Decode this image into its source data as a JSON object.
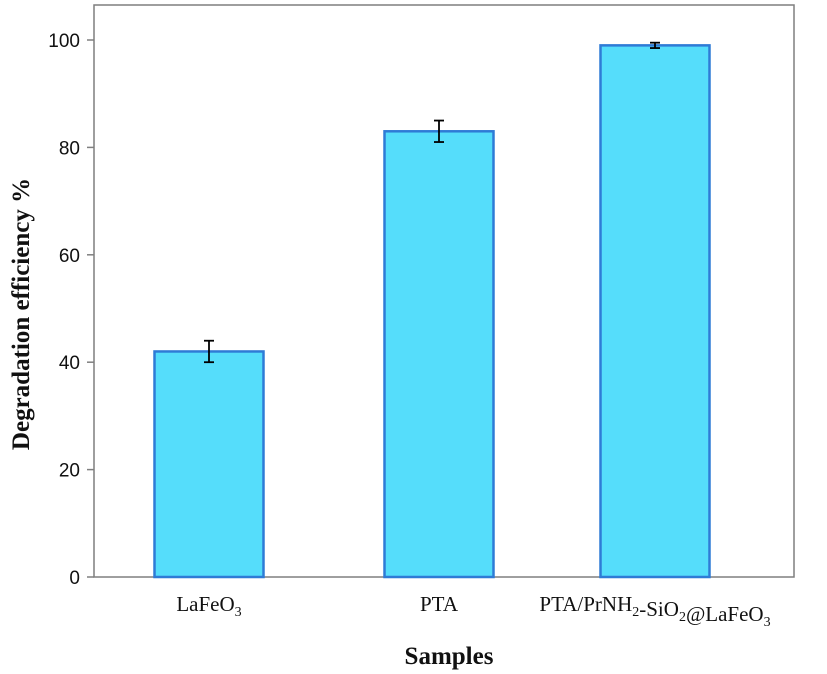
{
  "chart_data": {
    "type": "bar",
    "categories": [
      "LaFeO3",
      "PTA",
      "PTA/PrNH2-SiO2@LaFeO3"
    ],
    "category_parts": [
      [
        {
          "t": "LaFeO",
          "sub": false
        },
        {
          "t": "3",
          "sub": true
        }
      ],
      [
        {
          "t": "PTA",
          "sub": false
        }
      ],
      [
        {
          "t": "PTA/PrNH",
          "sub": false
        },
        {
          "t": "2",
          "sub": true
        },
        {
          "t": "-SiO",
          "sub": false
        },
        {
          "t": "2",
          "sub": true
        },
        {
          "t": "@LaFeO",
          "sub": false
        },
        {
          "t": "3",
          "sub": true
        }
      ]
    ],
    "values": [
      42,
      83,
      99
    ],
    "errors": [
      2,
      2,
      0.5
    ],
    "xlabel": "Samples",
    "ylabel": "Degradation efficiency %",
    "ylim": [
      0,
      100
    ],
    "yticks": [
      0,
      20,
      40,
      60,
      80,
      100
    ],
    "grid": false,
    "legend": "none",
    "colors": {
      "bar_fill": "#55DDFB",
      "bar_stroke": "#2E7BD6",
      "axis": "#7f7f7f",
      "error_bar": "#000000"
    }
  }
}
